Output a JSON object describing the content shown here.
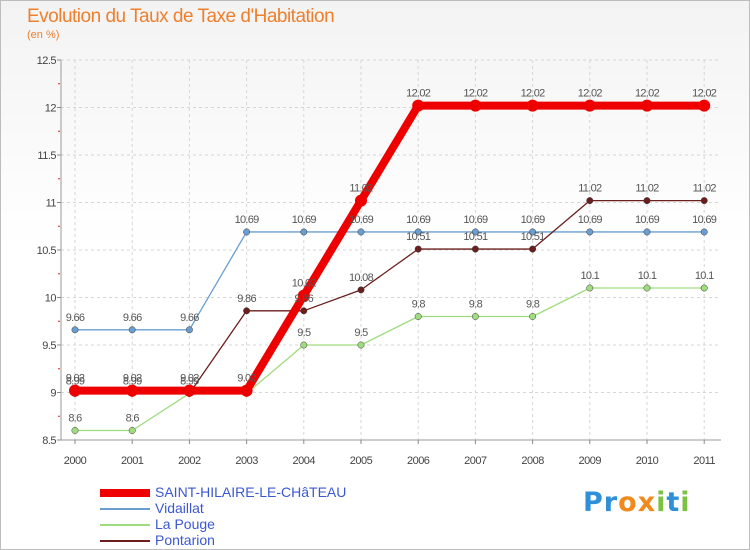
{
  "title": "Evolution du Taux de Taxe d'Habitation",
  "subtitle": "(en %)",
  "logo": {
    "letters": [
      "P",
      "r",
      "o",
      "x",
      "i",
      "t",
      "i"
    ],
    "colors": [
      "#2f8fd8",
      "#2f8fd8",
      "#f08a1c",
      "#f08a1c",
      "#7cc142",
      "#2f8fd8",
      "#7cc142"
    ]
  },
  "chart_data": {
    "type": "line",
    "title": "Evolution du Taux de Taxe d'Habitation",
    "ylabel": "(en %)",
    "xlabel": "",
    "x": [
      "2000",
      "2001",
      "2002",
      "2003",
      "2004",
      "2005",
      "2006",
      "2007",
      "2008",
      "2009",
      "2010",
      "2011"
    ],
    "ylim": [
      8.5,
      12.5
    ],
    "yticks": [
      "8.5",
      "9",
      "9.5",
      "10",
      "10.5",
      "11",
      "11.5",
      "12",
      "12.5"
    ],
    "grid": true,
    "legend_position": "bottom-left",
    "series": [
      {
        "name": "Vidaillat",
        "color": "#6a9ed0",
        "values": [
          9.66,
          9.66,
          9.66,
          10.69,
          10.69,
          10.69,
          10.69,
          10.69,
          10.69,
          10.69,
          10.69,
          10.69
        ],
        "labels": [
          "9.66",
          "9.66",
          "9.66",
          "10.69",
          "10.69",
          "10.69",
          "10.69",
          "10.69",
          "10.69",
          "10.69",
          "10.69",
          "10.69"
        ]
      },
      {
        "name": "Pontarion",
        "color": "#6b1e1e",
        "values": [
          8.99,
          8.99,
          8.99,
          9.86,
          9.86,
          10.08,
          10.51,
          10.51,
          10.51,
          11.02,
          11.02,
          11.02
        ],
        "labels": [
          "8.99",
          "8.99",
          "8.99",
          "9.86",
          "9.86",
          "10.08",
          "10.51",
          "10.51",
          "10.51",
          "11.02",
          "11.02",
          "11.02"
        ]
      },
      {
        "name": "La Pouge",
        "color": "#9fdc7e",
        "values": [
          8.6,
          8.6,
          8.99,
          8.99,
          9.5,
          9.5,
          9.8,
          9.8,
          9.8,
          10.1,
          10.1,
          10.1
        ],
        "labels": [
          "8.6",
          "8.6",
          "",
          "",
          "9.5",
          "9.5",
          "9.8",
          "9.8",
          "9.8",
          "10.1",
          "10.1",
          "10.1"
        ]
      },
      {
        "name": "SAINT-HILAIRE-LE-CHâTEAU",
        "color": "#ee0000",
        "values": [
          9.02,
          9.02,
          9.02,
          9.02,
          10.02,
          11.02,
          12.02,
          12.02,
          12.02,
          12.02,
          12.02,
          12.02
        ],
        "labels": [
          "9.02",
          "9.02",
          "9.02",
          "9.02",
          "10.02",
          "11.02",
          "12.02",
          "12.02",
          "12.02",
          "12.02",
          "12.02",
          "12.02"
        ]
      }
    ],
    "legend": [
      {
        "name": "SAINT-HILAIRE-LE-CHâTEAU",
        "color": "#ee0000",
        "thickness": "thick"
      },
      {
        "name": "Vidaillat",
        "color": "#6a9ed0",
        "thickness": "thin"
      },
      {
        "name": "La Pouge",
        "color": "#9fdc7e",
        "thickness": "thin"
      },
      {
        "name": "Pontarion",
        "color": "#6b1e1e",
        "thickness": "thin"
      }
    ]
  }
}
